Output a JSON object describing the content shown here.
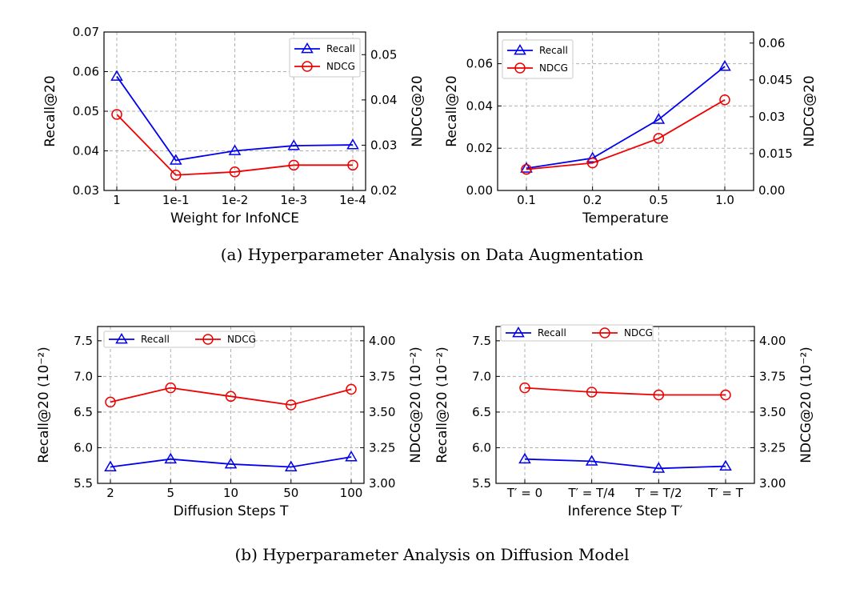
{
  "captions": {
    "a": "(a)  Hyperparameter Analysis on Data Augmentation",
    "b": "(b)  Hyperparameter Analysis on Diffusion Model"
  },
  "colors": {
    "recall": "#0000ee",
    "ndcg": "#ee0000",
    "grid": "#b0b0b0"
  },
  "chart_data": [
    {
      "type": "line",
      "xlabel": "Weight for InfoNCE",
      "ylabel": "Recall@20",
      "y2label": "NDCG@20",
      "categories": [
        "1",
        "1e-1",
        "1e-2",
        "1e-3",
        "1e-4"
      ],
      "ylim": [
        0.03,
        0.07
      ],
      "yticks": [
        "0.03",
        "0.04",
        "0.05",
        "0.06",
        "0.07"
      ],
      "y2lim": [
        0.02,
        0.055
      ],
      "y2ticks": [
        "0.02",
        "0.03",
        "0.04",
        "0.05"
      ],
      "legend": "top-right",
      "legend_layout": "vertical",
      "series": [
        {
          "name": "Recall",
          "axis": "left",
          "marker": "triangle",
          "values": [
            0.0588,
            0.0376,
            0.04,
            0.0413,
            0.0415
          ]
        },
        {
          "name": "NDCG",
          "axis": "right",
          "marker": "circle",
          "values": [
            0.0368,
            0.0234,
            0.0241,
            0.0256,
            0.0256
          ]
        }
      ]
    },
    {
      "type": "line",
      "xlabel": "Temperature",
      "ylabel": "Recall@20",
      "y2label": "NDCG@20",
      "categories": [
        "0.1",
        "0.2",
        "0.5",
        "1.0"
      ],
      "ylim": [
        0.0,
        0.075
      ],
      "yticks": [
        "0.00",
        "0.02",
        "0.04",
        "0.06"
      ],
      "y2lim": [
        0.0,
        0.0645
      ],
      "y2ticks": [
        "0.00",
        "0.015",
        "0.03",
        "0.045",
        "0.06"
      ],
      "legend": "top-left",
      "legend_layout": "vertical",
      "series": [
        {
          "name": "Recall",
          "axis": "left",
          "marker": "triangle",
          "values": [
            0.0105,
            0.0153,
            0.0336,
            0.0587
          ]
        },
        {
          "name": "NDCG",
          "axis": "right",
          "marker": "circle",
          "values": [
            0.0086,
            0.0112,
            0.0212,
            0.0369
          ]
        }
      ]
    },
    {
      "type": "line",
      "xlabel": "Diffusion Steps T",
      "ylabel": "Recall@20 (10⁻²)",
      "y2label": "NDCG@20 (10⁻²)",
      "categories": [
        "2",
        "5",
        "10",
        "50",
        "100"
      ],
      "ylim": [
        5.5,
        7.7
      ],
      "yticks": [
        "5.5",
        "6.0",
        "6.5",
        "7.0",
        "7.5"
      ],
      "y2lim": [
        3.0,
        4.1
      ],
      "y2ticks": [
        "3.00",
        "3.25",
        "3.50",
        "3.75",
        "4.00"
      ],
      "legend": "top",
      "legend_layout": "horizontal",
      "series": [
        {
          "name": "Recall",
          "axis": "left",
          "marker": "triangle",
          "values": [
            5.73,
            5.84,
            5.77,
            5.73,
            5.87
          ]
        },
        {
          "name": "NDCG",
          "axis": "right",
          "marker": "circle",
          "values": [
            3.57,
            3.67,
            3.61,
            3.55,
            3.66
          ]
        }
      ]
    },
    {
      "type": "line",
      "xlabel": "Inference Step T′",
      "ylabel": "Recall@20 (10⁻²)",
      "y2label": "NDCG@20 (10⁻²)",
      "categories": [
        "T′ = 0",
        "T′ = T/4",
        "T′ = T/2",
        "T′ = T"
      ],
      "ylim": [
        5.5,
        7.7
      ],
      "yticks": [
        "5.5",
        "6.0",
        "6.5",
        "7.0",
        "7.5"
      ],
      "y2lim": [
        3.0,
        4.1
      ],
      "y2ticks": [
        "3.00",
        "3.25",
        "3.50",
        "3.75",
        "4.00"
      ],
      "legend": "top",
      "legend_layout": "horizontal",
      "series": [
        {
          "name": "Recall",
          "axis": "left",
          "marker": "triangle",
          "values": [
            5.84,
            5.81,
            5.71,
            5.74
          ]
        },
        {
          "name": "NDCG",
          "axis": "right",
          "marker": "circle",
          "values": [
            3.67,
            3.64,
            3.62,
            3.62
          ]
        }
      ]
    }
  ]
}
